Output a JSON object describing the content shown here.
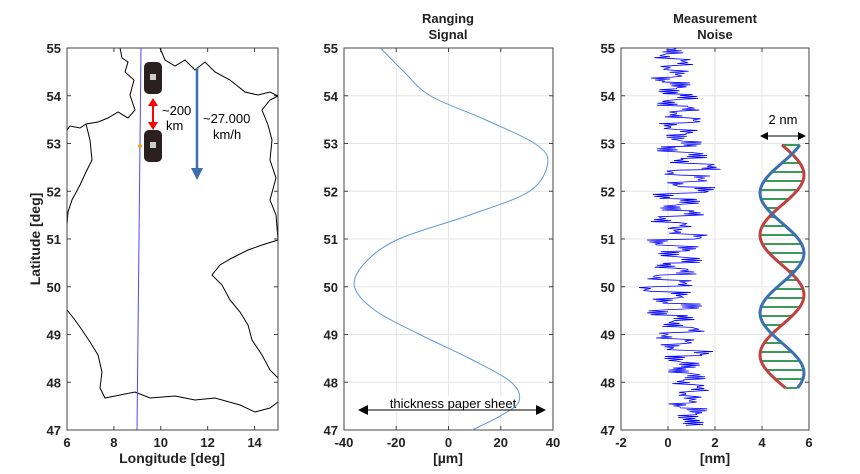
{
  "chart_data": [
    {
      "type": "map",
      "title": "",
      "xlabel": "Longitude [deg]",
      "ylabel": "Latitude [deg]",
      "xlim": [
        6,
        15
      ],
      "ylim": [
        47,
        55
      ],
      "xticks": [
        6,
        8,
        10,
        12,
        14
      ],
      "yticks": [
        47,
        48,
        49,
        50,
        51,
        52,
        53,
        54,
        55
      ],
      "ground_track": {
        "lon": [
          9.3,
          9.0
        ],
        "lat": [
          55,
          47
        ]
      },
      "annotations": {
        "separation": "~200",
        "separation_unit": "km",
        "speed": "~27.000",
        "speed_unit": "km/h"
      },
      "colors": {
        "track": "#4a4aff",
        "arrow_speed": "#3d6fb0",
        "arrow_sep": "#ff0000"
      }
    },
    {
      "type": "line",
      "title": "Ranging\nSignal",
      "title_lines": [
        "Ranging",
        "Signal"
      ],
      "xlabel": "[µm]",
      "ylabel": "",
      "xlim": [
        -40,
        40
      ],
      "ylim": [
        47,
        55
      ],
      "xticks": [
        -40,
        -20,
        0,
        20,
        40
      ],
      "yticks": [
        47,
        48,
        49,
        50,
        51,
        52,
        53,
        54,
        55
      ],
      "grid": true,
      "series": [
        {
          "name": "ranging signal",
          "color": "#5b9bd5",
          "lat": [
            55,
            54.5,
            54,
            53.5,
            53,
            52.6,
            52,
            51.5,
            51,
            50.5,
            50,
            49.5,
            49,
            48.5,
            48,
            47.6,
            47.3,
            47
          ],
          "x": [
            -26,
            -17,
            -7,
            14,
            33,
            38,
            31,
            8,
            -19,
            -32,
            -36,
            -28,
            -11,
            8,
            24,
            27,
            20,
            9
          ]
        }
      ],
      "annotation": "thickness paper sheet",
      "annotation_range": [
        -35,
        37
      ]
    },
    {
      "type": "line",
      "title": "Measurement\nNoise",
      "title_lines": [
        "Measurement",
        "Noise"
      ],
      "xlabel": "[nm]",
      "ylabel": "",
      "xlim": [
        -2,
        6
      ],
      "ylim": [
        47,
        55
      ],
      "xticks": [
        -2,
        0,
        2,
        4,
        6
      ],
      "yticks": [
        47,
        48,
        49,
        50,
        51,
        52,
        53,
        54,
        55
      ],
      "grid": true,
      "series": [
        {
          "name": "noise",
          "color": "#0000ff",
          "lat_start": 55,
          "lat_end": 47.2,
          "x": [
            0,
            -0.5,
            0.6,
            -0.3,
            0.3,
            -0.6,
            0.4,
            -0.2,
            0.8,
            -0.3,
            0.9,
            0.1,
            1.2,
            -0.2,
            0.8,
            0.2,
            1.0,
            -0.3,
            1.3,
            0.4,
            2.0,
            -0.1,
            1.5,
            0.2,
            1.7,
            -0.5,
            0.9,
            -0.1,
            1.1,
            -0.6,
            0.6,
            0.2,
            1.4,
            -0.8,
            0.8,
            -0.2,
            1.0,
            -0.4,
            0.7,
            -0.9,
            0.6,
            -1.4,
            0.4,
            -0.5,
            1.0,
            -0.8,
            0.6,
            0,
            1.2,
            -0.4,
            0.8,
            -0.1,
            1.6,
            0.1,
            0.9,
            0.3,
            1.2,
            0.5,
            1.4,
            0.6,
            1.0,
            0.3,
            1.3,
            0.8,
            1.1
          ]
        }
      ],
      "annotation": "2 nm"
    }
  ]
}
